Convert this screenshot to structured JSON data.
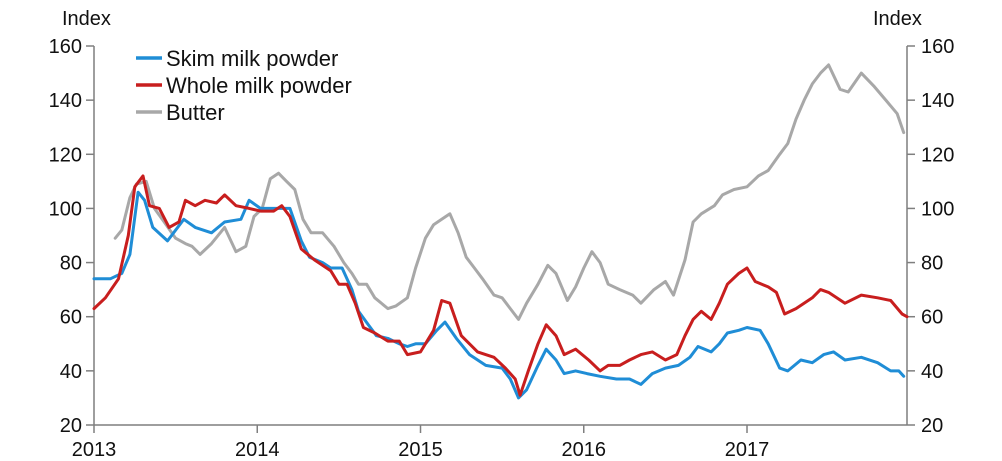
{
  "chart_data": {
    "type": "line",
    "left_axis_label": "Index",
    "right_axis_label": "Index",
    "ylim": [
      20,
      160
    ],
    "y_ticks": [
      20,
      40,
      60,
      80,
      100,
      120,
      140,
      160
    ],
    "x_ticks": [
      "2013",
      "2014",
      "2015",
      "2016",
      "2017"
    ],
    "x_range": [
      2013.0,
      2017.98
    ],
    "grid": false,
    "legend_position": "top-left",
    "series": [
      {
        "name": "Skim milk powder",
        "color": "#1f8dd6",
        "points": [
          [
            2013.0,
            74
          ],
          [
            2013.1,
            74
          ],
          [
            2013.17,
            76
          ],
          [
            2013.22,
            83
          ],
          [
            2013.27,
            106
          ],
          [
            2013.31,
            103
          ],
          [
            2013.36,
            93
          ],
          [
            2013.45,
            88
          ],
          [
            2013.55,
            96
          ],
          [
            2013.62,
            93
          ],
          [
            2013.72,
            91
          ],
          [
            2013.8,
            95
          ],
          [
            2013.9,
            96
          ],
          [
            2013.95,
            103
          ],
          [
            2014.02,
            100
          ],
          [
            2014.1,
            100
          ],
          [
            2014.2,
            100
          ],
          [
            2014.27,
            88
          ],
          [
            2014.32,
            82
          ],
          [
            2014.4,
            80
          ],
          [
            2014.45,
            78
          ],
          [
            2014.52,
            78
          ],
          [
            2014.58,
            70
          ],
          [
            2014.62,
            62
          ],
          [
            2014.68,
            57
          ],
          [
            2014.73,
            53
          ],
          [
            2014.8,
            52
          ],
          [
            2014.87,
            50
          ],
          [
            2014.92,
            49
          ],
          [
            2014.97,
            50
          ],
          [
            2015.03,
            50
          ],
          [
            2015.1,
            55
          ],
          [
            2015.15,
            58
          ],
          [
            2015.22,
            52
          ],
          [
            2015.3,
            46
          ],
          [
            2015.4,
            42
          ],
          [
            2015.5,
            41
          ],
          [
            2015.55,
            37
          ],
          [
            2015.6,
            30
          ],
          [
            2015.65,
            33
          ],
          [
            2015.72,
            42
          ],
          [
            2015.77,
            48
          ],
          [
            2015.83,
            44
          ],
          [
            2015.88,
            39
          ],
          [
            2015.95,
            40
          ],
          [
            2016.02,
            39
          ],
          [
            2016.1,
            38
          ],
          [
            2016.2,
            37
          ],
          [
            2016.28,
            37
          ],
          [
            2016.35,
            35
          ],
          [
            2016.42,
            39
          ],
          [
            2016.5,
            41
          ],
          [
            2016.58,
            42
          ],
          [
            2016.65,
            45
          ],
          [
            2016.7,
            49
          ],
          [
            2016.78,
            47
          ],
          [
            2016.83,
            50
          ],
          [
            2016.88,
            54
          ],
          [
            2016.95,
            55
          ],
          [
            2017.0,
            56
          ],
          [
            2017.08,
            55
          ],
          [
            2017.13,
            50
          ],
          [
            2017.2,
            41
          ],
          [
            2017.25,
            40
          ],
          [
            2017.33,
            44
          ],
          [
            2017.4,
            43
          ],
          [
            2017.47,
            46
          ],
          [
            2017.53,
            47
          ],
          [
            2017.6,
            44
          ],
          [
            2017.7,
            45
          ],
          [
            2017.8,
            43
          ],
          [
            2017.88,
            40
          ],
          [
            2017.93,
            40
          ],
          [
            2017.96,
            38
          ]
        ]
      },
      {
        "name": "Whole milk powder",
        "color": "#c81e1e",
        "points": [
          [
            2013.0,
            63
          ],
          [
            2013.07,
            67
          ],
          [
            2013.15,
            74
          ],
          [
            2013.21,
            90
          ],
          [
            2013.25,
            108
          ],
          [
            2013.3,
            112
          ],
          [
            2013.34,
            101
          ],
          [
            2013.4,
            100
          ],
          [
            2013.46,
            93
          ],
          [
            2013.52,
            95
          ],
          [
            2013.56,
            103
          ],
          [
            2013.62,
            101
          ],
          [
            2013.68,
            103
          ],
          [
            2013.75,
            102
          ],
          [
            2013.8,
            105
          ],
          [
            2013.87,
            101
          ],
          [
            2013.95,
            100
          ],
          [
            2014.02,
            99
          ],
          [
            2014.1,
            99
          ],
          [
            2014.15,
            101
          ],
          [
            2014.2,
            97
          ],
          [
            2014.27,
            85
          ],
          [
            2014.35,
            81
          ],
          [
            2014.45,
            77
          ],
          [
            2014.5,
            72
          ],
          [
            2014.55,
            72
          ],
          [
            2014.6,
            65
          ],
          [
            2014.65,
            56
          ],
          [
            2014.72,
            54
          ],
          [
            2014.8,
            51
          ],
          [
            2014.87,
            51
          ],
          [
            2014.92,
            46
          ],
          [
            2015.0,
            47
          ],
          [
            2015.08,
            55
          ],
          [
            2015.13,
            66
          ],
          [
            2015.18,
            65
          ],
          [
            2015.25,
            53
          ],
          [
            2015.35,
            47
          ],
          [
            2015.45,
            45
          ],
          [
            2015.52,
            41
          ],
          [
            2015.58,
            37
          ],
          [
            2015.61,
            31
          ],
          [
            2015.66,
            40
          ],
          [
            2015.72,
            50
          ],
          [
            2015.77,
            57
          ],
          [
            2015.83,
            53
          ],
          [
            2015.88,
            46
          ],
          [
            2015.95,
            48
          ],
          [
            2016.03,
            44
          ],
          [
            2016.1,
            40
          ],
          [
            2016.15,
            42
          ],
          [
            2016.22,
            42
          ],
          [
            2016.28,
            44
          ],
          [
            2016.35,
            46
          ],
          [
            2016.42,
            47
          ],
          [
            2016.5,
            44
          ],
          [
            2016.57,
            46
          ],
          [
            2016.62,
            53
          ],
          [
            2016.67,
            59
          ],
          [
            2016.72,
            62
          ],
          [
            2016.78,
            59
          ],
          [
            2016.83,
            65
          ],
          [
            2016.88,
            72
          ],
          [
            2016.95,
            76
          ],
          [
            2017.0,
            78
          ],
          [
            2017.05,
            73
          ],
          [
            2017.13,
            71
          ],
          [
            2017.18,
            69
          ],
          [
            2017.23,
            61
          ],
          [
            2017.3,
            63
          ],
          [
            2017.4,
            67
          ],
          [
            2017.45,
            70
          ],
          [
            2017.5,
            69
          ],
          [
            2017.6,
            65
          ],
          [
            2017.7,
            68
          ],
          [
            2017.8,
            67
          ],
          [
            2017.88,
            66
          ],
          [
            2017.95,
            61
          ],
          [
            2017.98,
            60
          ]
        ]
      },
      {
        "name": "Butter",
        "color": "#a8a8a8",
        "points": [
          [
            2013.13,
            89
          ],
          [
            2013.17,
            92
          ],
          [
            2013.22,
            104
          ],
          [
            2013.26,
            109
          ],
          [
            2013.32,
            110
          ],
          [
            2013.37,
            100
          ],
          [
            2013.43,
            95
          ],
          [
            2013.5,
            89
          ],
          [
            2013.56,
            87
          ],
          [
            2013.6,
            86
          ],
          [
            2013.65,
            83
          ],
          [
            2013.72,
            87
          ],
          [
            2013.8,
            93
          ],
          [
            2013.87,
            84
          ],
          [
            2013.93,
            86
          ],
          [
            2013.98,
            97
          ],
          [
            2014.03,
            100
          ],
          [
            2014.08,
            111
          ],
          [
            2014.13,
            113
          ],
          [
            2014.18,
            110
          ],
          [
            2014.23,
            107
          ],
          [
            2014.28,
            96
          ],
          [
            2014.33,
            91
          ],
          [
            2014.4,
            91
          ],
          [
            2014.47,
            86
          ],
          [
            2014.53,
            80
          ],
          [
            2014.58,
            76
          ],
          [
            2014.62,
            72
          ],
          [
            2014.67,
            72
          ],
          [
            2014.72,
            67
          ],
          [
            2014.8,
            63
          ],
          [
            2014.85,
            64
          ],
          [
            2014.92,
            67
          ],
          [
            2014.97,
            78
          ],
          [
            2015.03,
            89
          ],
          [
            2015.08,
            94
          ],
          [
            2015.13,
            96
          ],
          [
            2015.18,
            98
          ],
          [
            2015.23,
            91
          ],
          [
            2015.28,
            82
          ],
          [
            2015.33,
            78
          ],
          [
            2015.38,
            74
          ],
          [
            2015.45,
            68
          ],
          [
            2015.5,
            67
          ],
          [
            2015.55,
            63
          ],
          [
            2015.6,
            59
          ],
          [
            2015.65,
            65
          ],
          [
            2015.72,
            72
          ],
          [
            2015.78,
            79
          ],
          [
            2015.83,
            76
          ],
          [
            2015.9,
            66
          ],
          [
            2015.95,
            71
          ],
          [
            2016.0,
            78
          ],
          [
            2016.05,
            84
          ],
          [
            2016.1,
            80
          ],
          [
            2016.15,
            72
          ],
          [
            2016.22,
            70
          ],
          [
            2016.3,
            68
          ],
          [
            2016.35,
            65
          ],
          [
            2016.43,
            70
          ],
          [
            2016.5,
            73
          ],
          [
            2016.55,
            68
          ],
          [
            2016.62,
            81
          ],
          [
            2016.67,
            95
          ],
          [
            2016.72,
            98
          ],
          [
            2016.8,
            101
          ],
          [
            2016.85,
            105
          ],
          [
            2016.92,
            107
          ],
          [
            2017.0,
            108
          ],
          [
            2017.07,
            112
          ],
          [
            2017.13,
            114
          ],
          [
            2017.2,
            120
          ],
          [
            2017.25,
            124
          ],
          [
            2017.3,
            133
          ],
          [
            2017.35,
            140
          ],
          [
            2017.4,
            146
          ],
          [
            2017.45,
            150
          ],
          [
            2017.5,
            153
          ],
          [
            2017.57,
            144
          ],
          [
            2017.62,
            143
          ],
          [
            2017.7,
            150
          ],
          [
            2017.78,
            145
          ],
          [
            2017.85,
            140
          ],
          [
            2017.92,
            135
          ],
          [
            2017.96,
            128
          ]
        ]
      }
    ]
  }
}
